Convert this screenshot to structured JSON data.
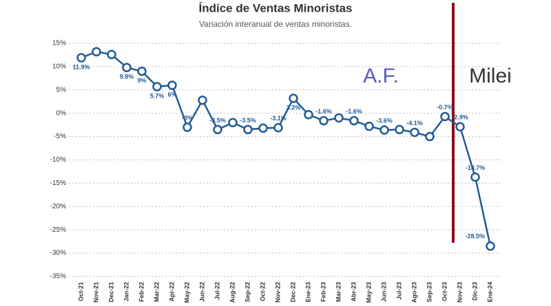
{
  "chart_data": {
    "type": "line",
    "title": "Índice de Ventas Minoristas",
    "subtitle": "Variación interanual de ventas minoristas.",
    "categories": [
      "Oct-21",
      "Nov-21",
      "Dec-21",
      "Jan-22",
      "Feb-22",
      "Mar-22",
      "Apr-22",
      "May-22",
      "Jun-22",
      "Jul-22",
      "Aug-22",
      "Sep-22",
      "Oct-22",
      "Nov-22",
      "Dec-22",
      "Ene-23",
      "Feb-23",
      "Mar-23",
      "Abr-23",
      "May-23",
      "Jun-23",
      "Jul-23",
      "Ago-23",
      "Sep-23",
      "Oct-23",
      "Nov-23",
      "Dic-23",
      "Ene-24"
    ],
    "series": [
      {
        "name": "Ventas minoristas",
        "color": "#1f5b94",
        "values": [
          11.9,
          13.2,
          12.6,
          9.8,
          9,
          5.7,
          6,
          -3,
          2.8,
          -3.5,
          -2,
          -3.5,
          -3.2,
          -3.1,
          3.2,
          -0.3,
          -1.6,
          -1,
          -1.6,
          -2.8,
          -3.6,
          -3.5,
          -4.1,
          -5,
          -0.7,
          -2.9,
          -13.7,
          -28.5
        ],
        "value_labels": [
          "11.9%",
          null,
          null,
          "9.8%",
          "9%",
          "5.7%",
          "6%",
          "-3%",
          null,
          "-3.5%",
          null,
          "-3.5%",
          null,
          "-3.1%",
          "3.2%",
          null,
          "-1.6%",
          null,
          "-1.6%",
          null,
          "-3.6%",
          null,
          "-4.1%",
          null,
          "-0.7%",
          "-2.9%",
          "-13.7%",
          "-28.5%"
        ]
      }
    ],
    "ylim": [
      -35,
      15
    ],
    "yticks": [
      {
        "value": 15,
        "label": "15%"
      },
      {
        "value": 10,
        "label": "10%"
      },
      {
        "value": 5,
        "label": "5%"
      },
      {
        "value": 0,
        "label": "0%"
      },
      {
        "value": -5,
        "label": "-5%"
      },
      {
        "value": -10,
        "label": "-10%"
      },
      {
        "value": -15,
        "label": "-15%"
      },
      {
        "value": -20,
        "label": "-20%"
      },
      {
        "value": -25,
        "label": "-25%"
      },
      {
        "value": -30,
        "label": "-30%"
      },
      {
        "value": -35,
        "label": "-35%"
      }
    ],
    "grid": true,
    "annotations": [
      "A.F.",
      "Milei"
    ]
  }
}
